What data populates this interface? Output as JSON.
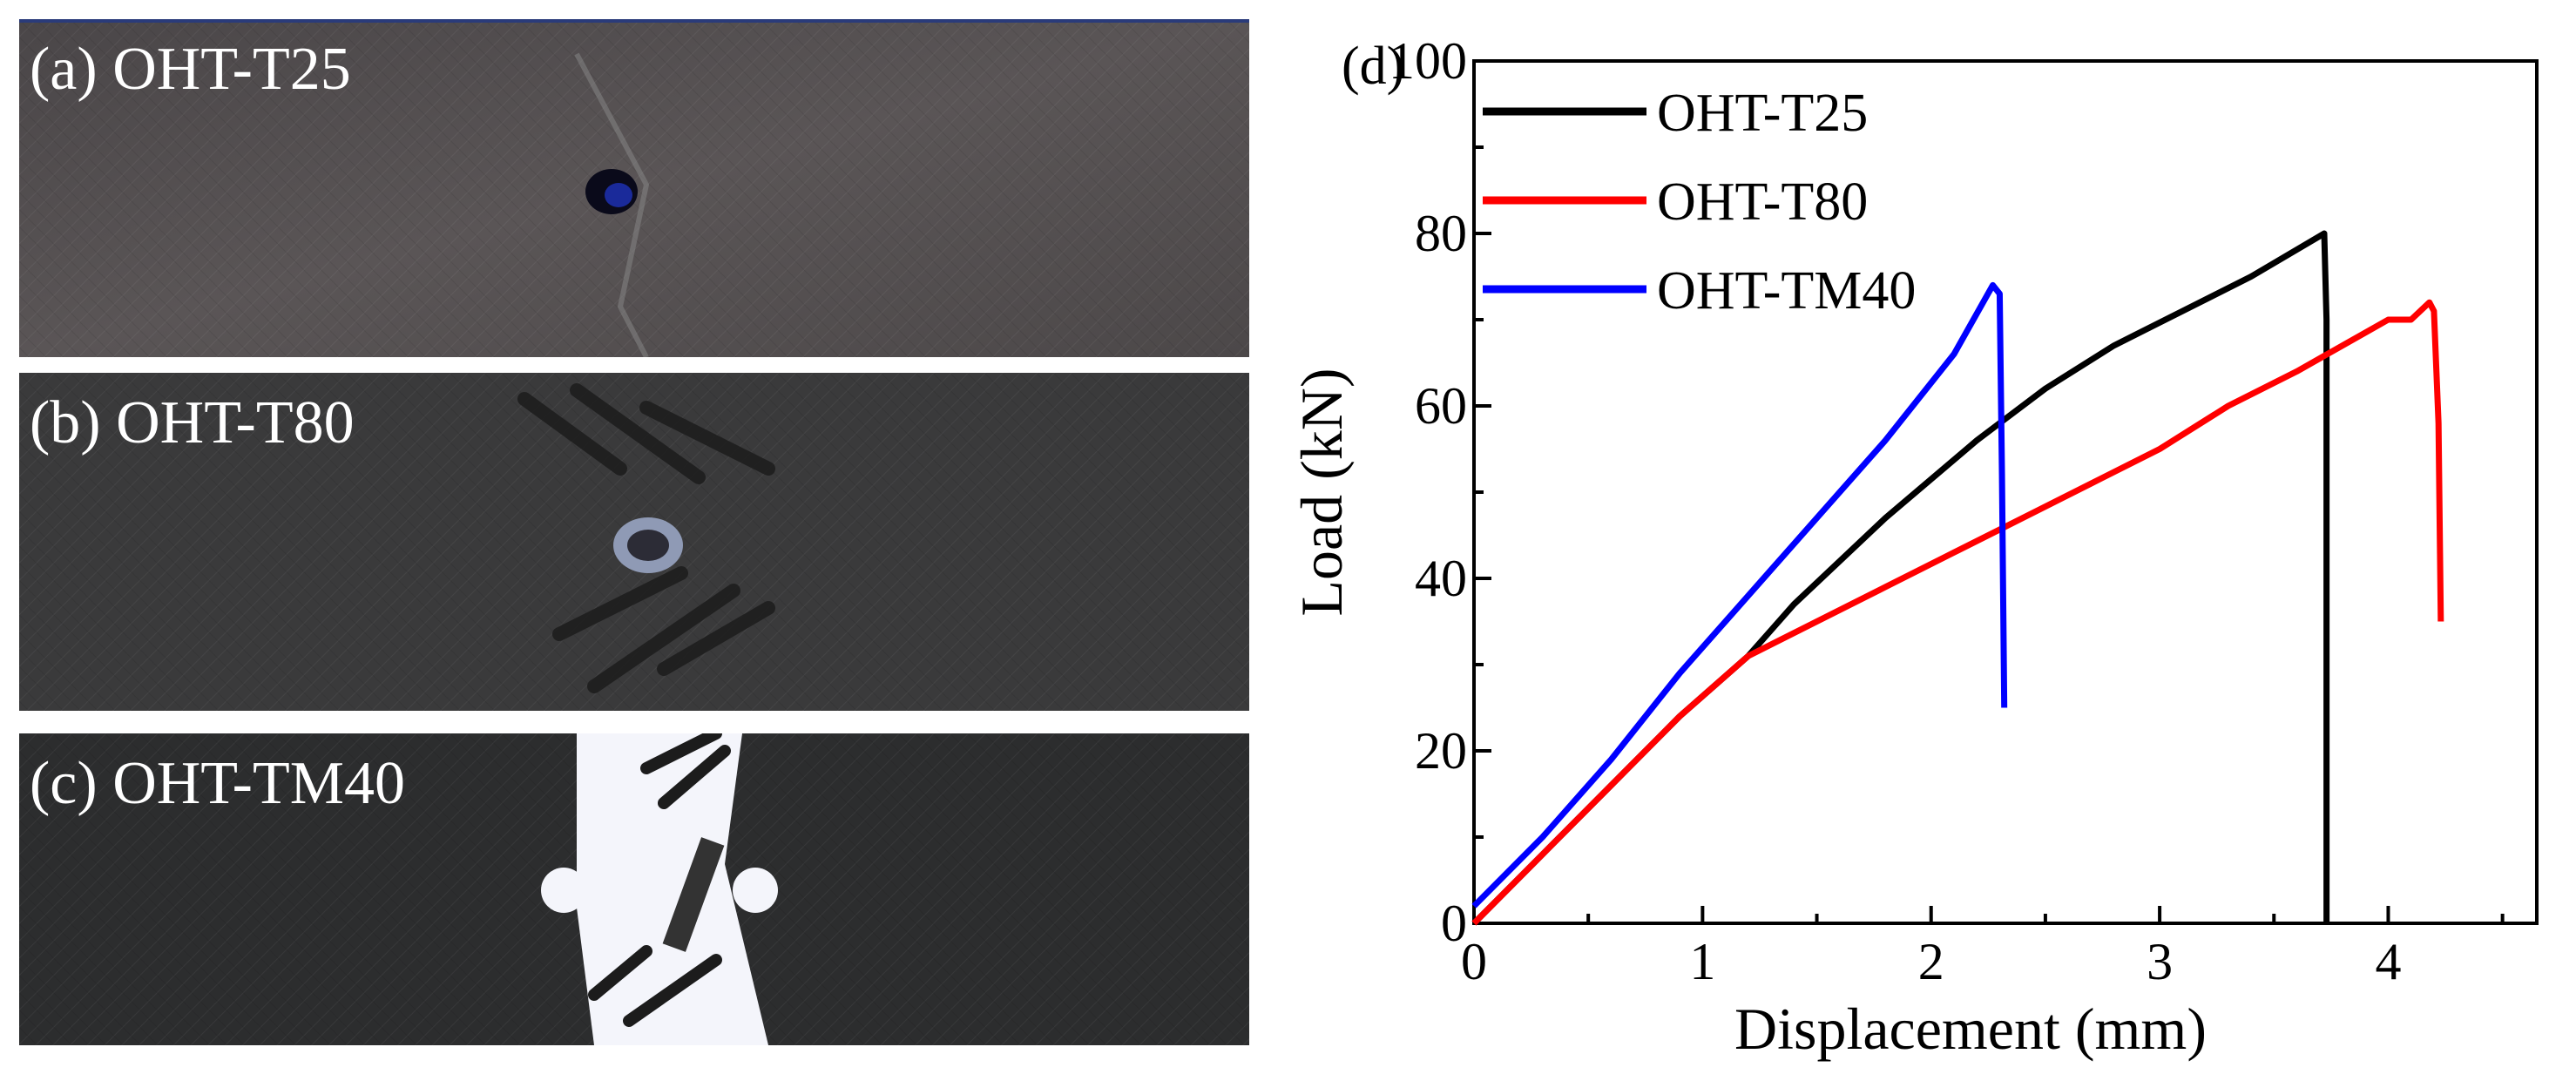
{
  "panels": [
    {
      "id": "a",
      "label": "(a) OHT-T25"
    },
    {
      "id": "b",
      "label": "(b) OHT-T80"
    },
    {
      "id": "c",
      "label": "(c) OHT-TM40"
    }
  ],
  "chart_data": {
    "type": "line",
    "panel_label": "(d)",
    "xlabel": "Displacement (mm)",
    "ylabel": "Load (kN)",
    "xlim": [
      0,
      4.65
    ],
    "ylim": [
      0,
      100
    ],
    "xticks": [
      0,
      1,
      2,
      3,
      4
    ],
    "yticks": [
      0,
      20,
      40,
      60,
      80,
      100
    ],
    "legend_position": "top-left",
    "series": [
      {
        "name": "OHT-T25",
        "color": "#000000",
        "x": [
          0,
          0.3,
          0.6,
          0.9,
          1.2,
          1.4,
          1.8,
          2.2,
          2.5,
          2.8,
          3.1,
          3.4,
          3.72,
          3.73,
          3.73
        ],
        "y": [
          0,
          8,
          16,
          24,
          31,
          37,
          47,
          56,
          62,
          67,
          71,
          75,
          80,
          70,
          0
        ]
      },
      {
        "name": "OHT-T80",
        "color": "#ff0000",
        "x": [
          0,
          0.3,
          0.6,
          0.9,
          1.2,
          1.5,
          1.8,
          2.1,
          2.4,
          2.7,
          3.0,
          3.3,
          3.6,
          3.8,
          4.0,
          4.1,
          4.18,
          4.2,
          4.22,
          4.23
        ],
        "y": [
          0,
          8,
          16,
          24,
          31,
          35,
          39,
          43,
          47,
          51,
          55,
          60,
          64,
          67,
          70,
          70,
          72,
          71,
          58,
          35
        ]
      },
      {
        "name": "OHT-TM40",
        "color": "#0000ff",
        "x": [
          0,
          0.3,
          0.6,
          0.9,
          1.2,
          1.5,
          1.8,
          2.1,
          2.27,
          2.3,
          2.31,
          2.32
        ],
        "y": [
          2,
          10,
          19,
          29,
          38,
          47,
          56,
          66,
          74,
          73,
          52,
          25
        ]
      }
    ]
  }
}
